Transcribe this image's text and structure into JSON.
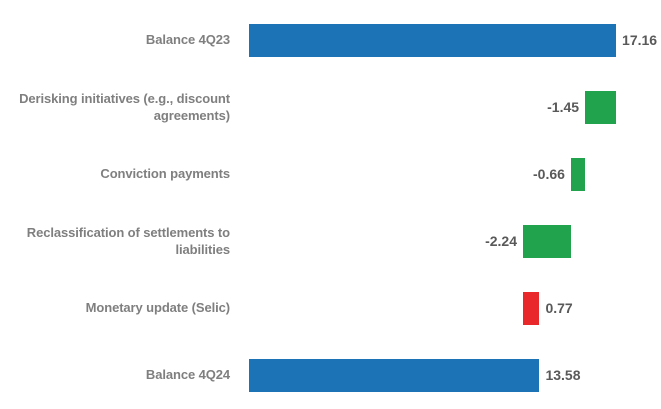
{
  "colors": {
    "bar_blue": "#1C73B5",
    "bar_green": "#21A24C",
    "bar_red": "#E8282B",
    "category_label": "#7F7F7F",
    "value_label": "#595959",
    "background": "#FFFFFF"
  },
  "chart_data": {
    "type": "bar",
    "subtype": "horizontal-waterfall",
    "title": "",
    "xlabel": "",
    "ylabel": "",
    "axis_range": [
      0,
      17.16
    ],
    "grid": false,
    "legend": false,
    "categories": [
      "Balance 4Q23",
      "Derisking initiatives (e.g., discount agreements)",
      "Conviction payments",
      "Reclassification of settlements to liabilities",
      "Monetary update (Selic)",
      "Balance 4Q24"
    ],
    "values": [
      17.16,
      -1.45,
      -0.66,
      -2.24,
      0.77,
      13.58
    ],
    "rows": [
      {
        "id": "balance-4q23",
        "label_lines": [
          "Balance 4Q23"
        ],
        "value": 17.16,
        "display": "17.16",
        "bar_from": 0,
        "bar_to": 17.16,
        "color": "bar_blue",
        "value_side": "right"
      },
      {
        "id": "derisking-initiatives",
        "label_lines": [
          "Derisking initiatives (e.g., discount",
          "agreements)"
        ],
        "value": -1.45,
        "display": "-1.45",
        "bar_from": 15.71,
        "bar_to": 17.16,
        "color": "bar_green",
        "value_side": "left"
      },
      {
        "id": "conviction-payments",
        "label_lines": [
          "Conviction payments"
        ],
        "value": -0.66,
        "display": "-0.66",
        "bar_from": 15.05,
        "bar_to": 15.71,
        "color": "bar_green",
        "value_side": "left"
      },
      {
        "id": "reclassification-of-settlements-to-liabilities",
        "label_lines": [
          "Reclassification of settlements to",
          "liabilities"
        ],
        "value": -2.24,
        "display": "-2.24",
        "bar_from": 12.81,
        "bar_to": 15.05,
        "color": "bar_green",
        "value_side": "left"
      },
      {
        "id": "monetary-update-selic",
        "label_lines": [
          "Monetary update (Selic)"
        ],
        "value": 0.77,
        "display": "0.77",
        "bar_from": 12.81,
        "bar_to": 13.58,
        "color": "bar_red",
        "value_side": "right"
      },
      {
        "id": "balance-4q24",
        "label_lines": [
          "Balance 4Q24"
        ],
        "value": 13.58,
        "display": "13.58",
        "bar_from": 0,
        "bar_to": 13.58,
        "color": "bar_blue",
        "value_side": "right"
      }
    ]
  }
}
